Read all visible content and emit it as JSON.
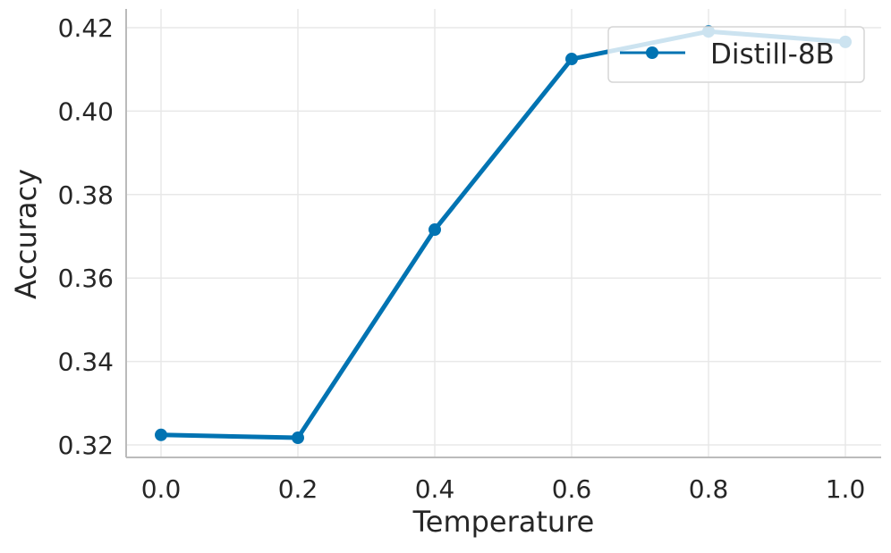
{
  "chart_data": {
    "type": "line",
    "title": "",
    "xlabel": "Temperature",
    "ylabel": "Accuracy",
    "x": [
      0.0,
      0.2,
      0.4,
      0.6,
      0.8,
      1.0
    ],
    "series": [
      {
        "name": "Distill-8B",
        "color": "#0173b2",
        "values": [
          0.3224,
          0.3217,
          0.3716,
          0.4125,
          0.4191,
          0.4166
        ]
      }
    ],
    "xticks": [
      "0.0",
      "0.2",
      "0.4",
      "0.6",
      "0.8",
      "1.0"
    ],
    "yticks": [
      "0.32",
      "0.34",
      "0.36",
      "0.38",
      "0.40",
      "0.42"
    ],
    "xlim": [
      -0.05,
      1.05
    ],
    "ylim": [
      0.317,
      0.4235
    ],
    "grid": true,
    "legend_position": "top-right"
  }
}
